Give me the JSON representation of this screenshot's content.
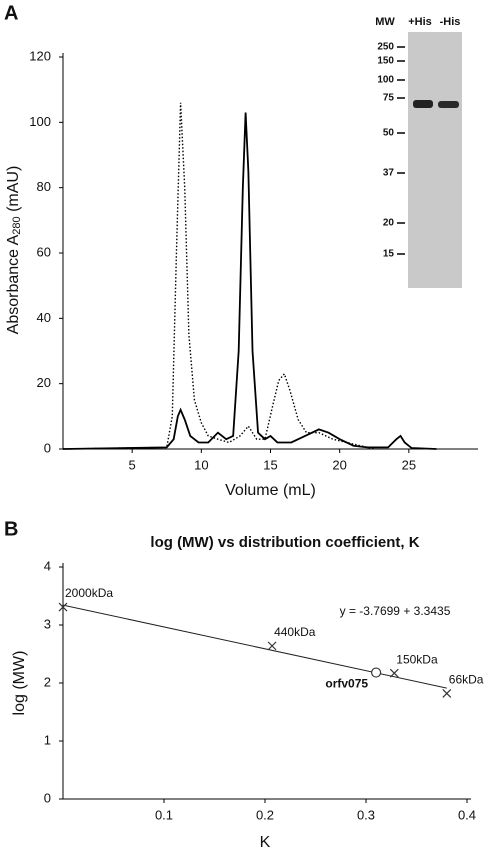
{
  "panels": [
    "A",
    "B"
  ],
  "gel_inset": {
    "headers": [
      "MW",
      "+His",
      "-His"
    ],
    "markers": [
      "250",
      "150",
      "100",
      "75",
      "50",
      "37",
      "20",
      "15"
    ]
  },
  "chart_data": [
    {
      "type": "line",
      "x_label": "Volume (mL)",
      "y_label": "Absorbance A",
      "y_label_sub": "280",
      "y_label_unit": "(mAU)",
      "xlim": [
        0,
        30
      ],
      "xticks": [
        5,
        10,
        15,
        20,
        25
      ],
      "ylim": [
        0,
        120
      ],
      "yticks": [
        0,
        20,
        40,
        60,
        80,
        100,
        120
      ],
      "series": [
        {
          "style": "solid",
          "color": "#000000",
          "x": [
            0,
            7.5,
            8,
            8.3,
            8.5,
            8.8,
            9.2,
            9.8,
            10.5,
            11.2,
            11.8,
            12.3,
            12.7,
            13.0,
            13.2,
            13.4,
            13.7,
            14.1,
            14.6,
            15.0,
            15.5,
            16.5,
            17.5,
            18.5,
            19.2,
            20,
            21,
            22,
            23.5,
            24.1,
            24.4,
            24.7,
            25.2,
            27
          ],
          "values": [
            0,
            0.5,
            3,
            10,
            12,
            9,
            4,
            2,
            2,
            5,
            3,
            4,
            30,
            80,
            103,
            85,
            30,
            5,
            3,
            4,
            2,
            2,
            4,
            6,
            5,
            3,
            1,
            0.5,
            0.5,
            3,
            4,
            2,
            0.3,
            0
          ]
        },
        {
          "style": "dotted",
          "color": "#000000",
          "x": [
            0,
            7.5,
            7.9,
            8.2,
            8.5,
            8.8,
            9.1,
            9.5,
            10,
            10.5,
            11.2,
            12,
            12.8,
            13.4,
            14,
            14.6,
            15.2,
            15.6,
            16,
            16.4,
            17,
            17.6,
            18.5,
            19.5,
            20.5,
            21.5,
            22.5
          ],
          "values": [
            0,
            0.5,
            10,
            60,
            106,
            80,
            35,
            15,
            8,
            4,
            3,
            2,
            4,
            7,
            3,
            3,
            14,
            21,
            23,
            18,
            9,
            5,
            5,
            3,
            2,
            1,
            0
          ]
        }
      ]
    },
    {
      "type": "scatter",
      "title": "log (MW) vs distribution coefficient, K",
      "x_label": "K",
      "y_label": "log (MW)",
      "xlim": [
        0,
        0.4
      ],
      "xticks": [
        0.1,
        0.2,
        0.3,
        0.4
      ],
      "ylim": [
        0,
        4
      ],
      "yticks": [
        0,
        1,
        2,
        3,
        4
      ],
      "series": [
        {
          "marker": "x",
          "color": "#333333",
          "x": [
            0,
            0.207,
            0.328,
            0.38
          ],
          "values": [
            3.31,
            2.64,
            2.17,
            1.82
          ],
          "labels": [
            "2000kDa",
            "440kDa",
            "150kDa",
            "66kDa"
          ]
        },
        {
          "marker": "circle",
          "color": "#333333",
          "x": [
            0.31
          ],
          "values": [
            2.18
          ],
          "labels": [
            "orfv075"
          ]
        }
      ],
      "trendline": {
        "slope": -3.7699,
        "intercept": 3.3435,
        "label": "y = -3.7699 + 3.3435"
      }
    }
  ]
}
